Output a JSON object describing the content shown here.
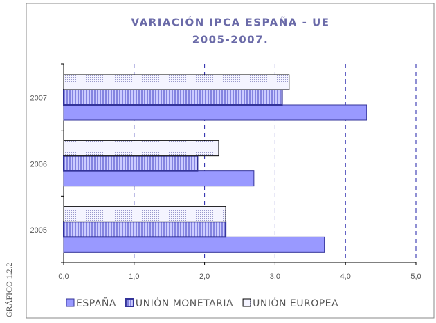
{
  "side_label": "GRÁFICO 1.2.2",
  "chart_data": {
    "type": "bar",
    "orientation": "horizontal",
    "title": [
      "VARIACIÓN IPCA ESPAÑA - UE",
      "2005-2007."
    ],
    "categories": [
      "2005",
      "2006",
      "2007"
    ],
    "series": [
      {
        "name": "ESPAÑA",
        "color": "#9999ff",
        "values": [
          3.7,
          2.7,
          4.3
        ]
      },
      {
        "name": "UNIÓN MONETARIA",
        "color": "#7777ee",
        "values": [
          2.3,
          1.9,
          3.1
        ]
      },
      {
        "name": "UNIÓN EUROPEA",
        "color": "#eeeeff",
        "values": [
          2.3,
          2.2,
          3.2
        ]
      }
    ],
    "xlim": [
      0,
      5
    ],
    "xticks": [
      {
        "value": 0,
        "label": "0,0"
      },
      {
        "value": 1,
        "label": "1,0"
      },
      {
        "value": 2,
        "label": "2,0"
      },
      {
        "value": 3,
        "label": "3,0"
      },
      {
        "value": 4,
        "label": "4,0"
      },
      {
        "value": 5,
        "label": "5,0"
      }
    ],
    "grid": true,
    "legend": "bottom"
  }
}
